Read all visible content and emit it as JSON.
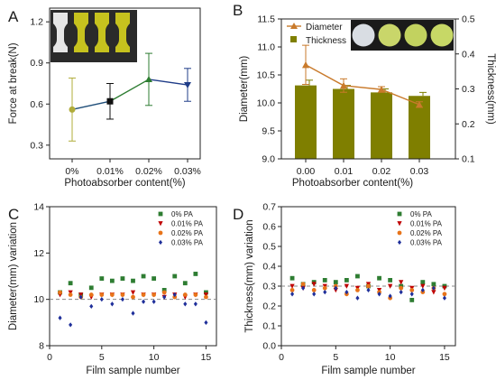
{
  "chart_data": [
    {
      "panel": "A",
      "type": "line",
      "xlabel": "Photoabsorber content(%)",
      "ylabel": "Force at break(N)",
      "categories": [
        "0%",
        "0.01%",
        "0.02%",
        "0.03%"
      ],
      "y_ticks": [
        "0.3",
        "0.6",
        "0.9",
        "1.2"
      ],
      "ylim": [
        0.2,
        1.3
      ],
      "series": [
        {
          "values": [
            0.56,
            0.62,
            0.78,
            0.74
          ],
          "error": [
            0.23,
            0.13,
            0.19,
            0.12
          ],
          "segment_colors": [
            "#1f4e79",
            "#2e7d32",
            "#1f3c88"
          ],
          "marker_colors": [
            "#b0ac3a",
            "#111111",
            "#2e7d32",
            "#1f3c88"
          ]
        }
      ],
      "inset": "photo of four dog-bone tensile specimens: one white, three yellow"
    },
    {
      "panel": "B",
      "type": "bar+line",
      "xlabel": "Photoabsorber content(%)",
      "ylabel_left": "Diameter(mm)",
      "ylabel_right": "Thickness(mm)",
      "categories": [
        "0.00",
        "0.01",
        "0.02",
        "0.03"
      ],
      "y_left_ticks": [
        "9.0",
        "9.5",
        "10.0",
        "10.5",
        "11.0",
        "11.5"
      ],
      "ylim_left": [
        9.0,
        11.5
      ],
      "y_right_ticks": [
        "0.1",
        "0.2",
        "0.3",
        "0.4",
        "0.5"
      ],
      "ylim_right": [
        0.1,
        0.5
      ],
      "legend": [
        "Diameter",
        "Thickness"
      ],
      "series": [
        {
          "name": "Diameter",
          "kind": "line",
          "axis": "left",
          "color": "#c97a2b",
          "values": [
            10.68,
            10.31,
            10.24,
            9.97
          ],
          "error": [
            0.35,
            0.12,
            0.05,
            0.05
          ]
        },
        {
          "name": "Thickness",
          "kind": "bar",
          "axis": "right",
          "color": "#7f7f00",
          "values": [
            0.31,
            0.3,
            0.29,
            0.28
          ],
          "error": [
            0.015,
            0.01,
            0.01,
            0.01
          ]
        }
      ],
      "inset": "photo of four round discs: one white, three yellow-green"
    },
    {
      "panel": "C",
      "type": "scatter",
      "xlabel": "Film sample number",
      "ylabel": "Diameter(mm) variation",
      "x_ticks": [
        "0",
        "5",
        "10",
        "15"
      ],
      "xlim": [
        0,
        16
      ],
      "y_ticks": [
        "8",
        "10",
        "12",
        "14"
      ],
      "ylim": [
        8,
        14
      ],
      "reference_line": 10,
      "legend": [
        "0%  PA",
        "0.01%  PA",
        "0.02%  PA",
        "0.03%  PA"
      ],
      "x": [
        1,
        2,
        3,
        4,
        5,
        6,
        7,
        8,
        9,
        10,
        11,
        12,
        13,
        14,
        15
      ],
      "series": [
        {
          "name": "0%  PA",
          "marker": "square",
          "color": "#2e7d32",
          "values": [
            10.3,
            10.7,
            10.2,
            10.5,
            10.9,
            10.8,
            10.9,
            10.8,
            11.0,
            10.9,
            10.4,
            11.0,
            10.7,
            11.1,
            10.3
          ]
        },
        {
          "name": "0.01%  PA",
          "marker": "triangle-down",
          "color": "#c00000",
          "values": [
            10.2,
            10.3,
            10.2,
            10.1,
            10.2,
            10.2,
            10.2,
            10.3,
            10.2,
            10.2,
            10.1,
            10.2,
            10.1,
            10.2,
            10.2
          ]
        },
        {
          "name": "0.02%  PA",
          "marker": "circle",
          "color": "#e8741a",
          "values": [
            10.3,
            10.2,
            10.1,
            10.2,
            10.2,
            10.2,
            10.2,
            10.1,
            10.2,
            10.2,
            10.3,
            10.1,
            10.2,
            10.2,
            10.1
          ]
        },
        {
          "name": "0.03%  PA",
          "marker": "diamond",
          "color": "#1f2f9a",
          "values": [
            9.2,
            8.9,
            10.1,
            9.7,
            10.0,
            9.8,
            10.0,
            9.4,
            9.9,
            9.9,
            10.1,
            10.2,
            9.8,
            9.8,
            9.0
          ]
        }
      ]
    },
    {
      "panel": "D",
      "type": "scatter",
      "xlabel": "Film sample number",
      "ylabel": "Thickness(mm) variation",
      "x_ticks": [
        "0",
        "5",
        "10",
        "15"
      ],
      "xlim": [
        0,
        16
      ],
      "y_ticks": [
        "0.0",
        "0.1",
        "0.2",
        "0.3",
        "0.4",
        "0.5",
        "0.6",
        "0.7"
      ],
      "ylim": [
        0,
        0.7
      ],
      "reference_line": 0.3,
      "legend": [
        "0%  PA",
        "0.01%  PA",
        "0.02%  PA",
        "0.03%  PA"
      ],
      "x": [
        1,
        2,
        3,
        4,
        5,
        6,
        7,
        8,
        9,
        10,
        11,
        12,
        13,
        14,
        15
      ],
      "series": [
        {
          "name": "0%  PA",
          "marker": "square",
          "color": "#2e7d32",
          "values": [
            0.34,
            0.31,
            0.32,
            0.33,
            0.32,
            0.33,
            0.35,
            0.3,
            0.34,
            0.33,
            0.3,
            0.23,
            0.32,
            0.31,
            0.3
          ]
        },
        {
          "name": "0.01%  PA",
          "marker": "triangle-down",
          "color": "#c00000",
          "values": [
            0.3,
            0.29,
            0.31,
            0.3,
            0.28,
            0.3,
            0.29,
            0.31,
            0.28,
            0.3,
            0.32,
            0.29,
            0.3,
            0.27,
            0.29
          ]
        },
        {
          "name": "0.02%  PA",
          "marker": "circle",
          "color": "#e8741a",
          "values": [
            0.28,
            0.31,
            0.28,
            0.29,
            0.3,
            0.26,
            0.28,
            0.3,
            0.27,
            0.24,
            0.29,
            0.28,
            0.27,
            0.29,
            0.26
          ]
        },
        {
          "name": "0.03%  PA",
          "marker": "diamond",
          "color": "#1f2f9a",
          "values": [
            0.26,
            0.29,
            0.26,
            0.27,
            0.29,
            0.27,
            0.24,
            0.28,
            0.26,
            0.25,
            0.27,
            0.26,
            0.28,
            0.29,
            0.24
          ]
        }
      ]
    }
  ]
}
